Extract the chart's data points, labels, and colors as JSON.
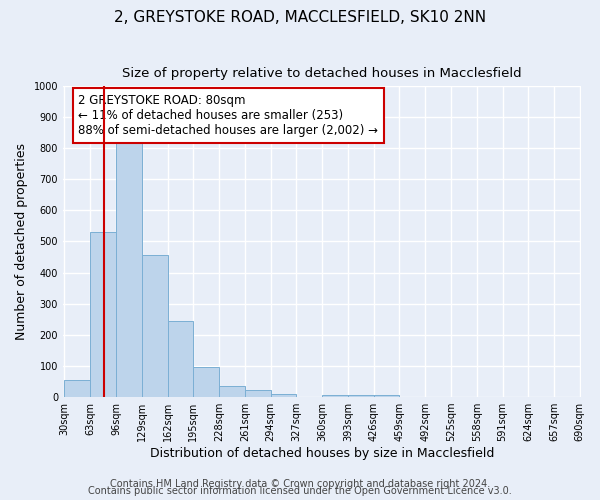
{
  "title": "2, GREYSTOKE ROAD, MACCLESFIELD, SK10 2NN",
  "subtitle": "Size of property relative to detached houses in Macclesfield",
  "xlabel": "Distribution of detached houses by size in Macclesfield",
  "ylabel": "Number of detached properties",
  "bar_color": "#bdd4eb",
  "bar_edge_color": "#7bafd4",
  "bin_edges": [
    30,
    63,
    96,
    129,
    162,
    195,
    228,
    261,
    294,
    327,
    360,
    393,
    426,
    459,
    492,
    525,
    558,
    591,
    624,
    657,
    690
  ],
  "bar_heights": [
    55,
    530,
    830,
    455,
    245,
    98,
    37,
    22,
    11,
    0,
    8,
    8,
    8,
    0,
    0,
    0,
    0,
    0,
    0,
    0
  ],
  "property_size": 80,
  "red_line_color": "#cc0000",
  "annotation_line1": "2 GREYSTOKE ROAD: 80sqm",
  "annotation_line2": "← 11% of detached houses are smaller (253)",
  "annotation_line3": "88% of semi-detached houses are larger (2,002) →",
  "annotation_box_color": "#ffffff",
  "annotation_border_color": "#cc0000",
  "ylim": [
    0,
    1000
  ],
  "yticks": [
    0,
    100,
    200,
    300,
    400,
    500,
    600,
    700,
    800,
    900,
    1000
  ],
  "footer_line1": "Contains HM Land Registry data © Crown copyright and database right 2024.",
  "footer_line2": "Contains public sector information licensed under the Open Government Licence v3.0.",
  "figure_bg_color": "#e8eef8",
  "axes_bg_color": "#e8eef8",
  "grid_color": "#ffffff",
  "title_fontsize": 11,
  "subtitle_fontsize": 9.5,
  "annotation_fontsize": 8.5,
  "tick_fontsize": 7,
  "axis_label_fontsize": 9,
  "footer_fontsize": 7
}
